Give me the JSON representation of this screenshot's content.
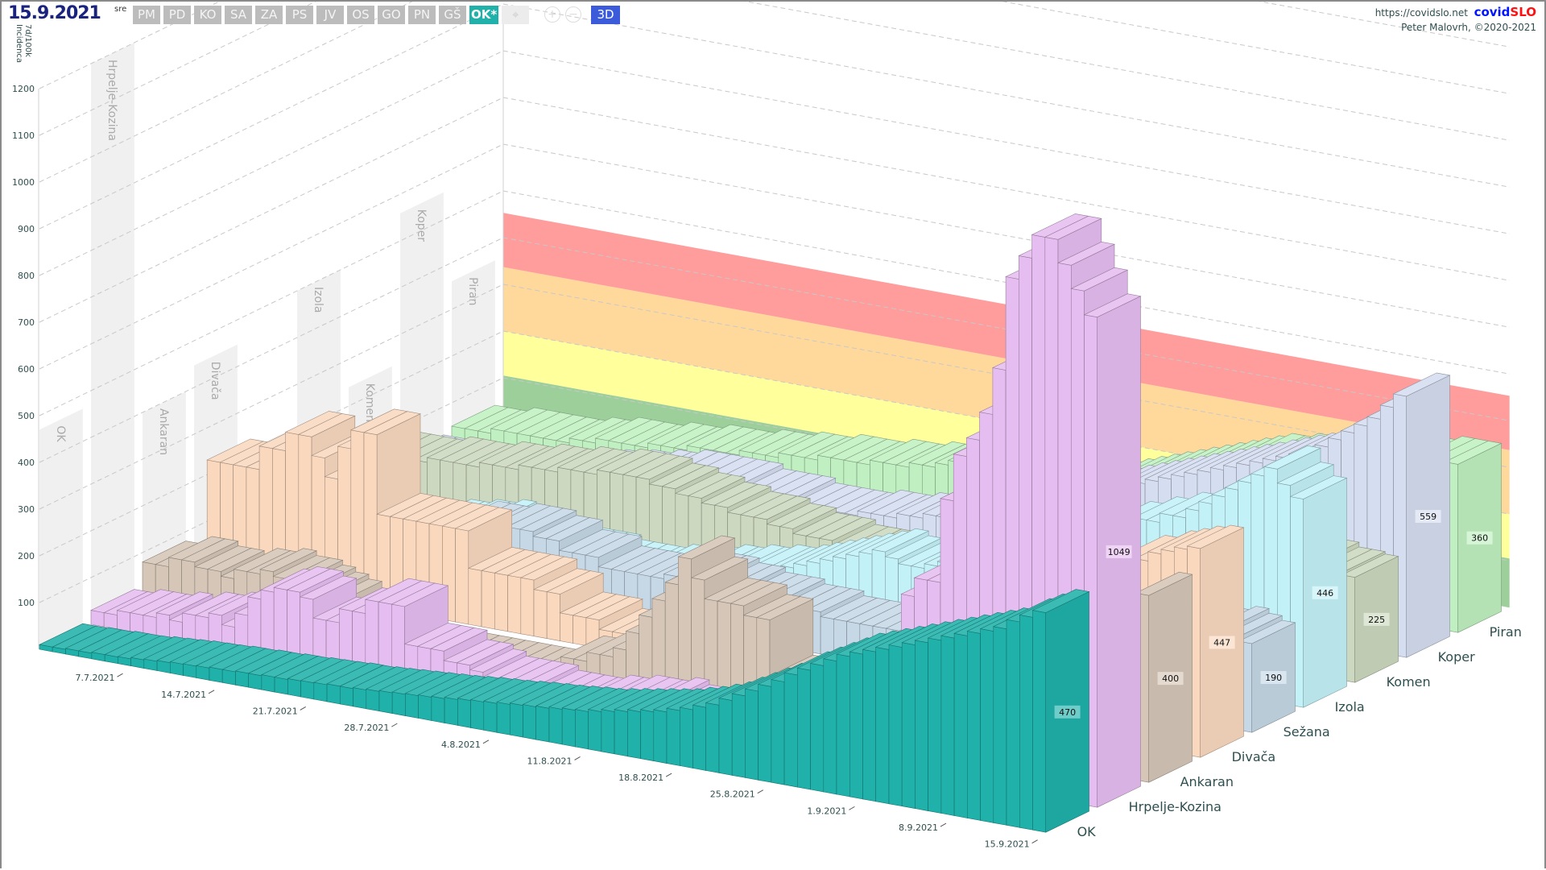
{
  "header": {
    "date": "15.9.2021",
    "weekday": "sre",
    "buttons": [
      "PM",
      "PD",
      "KO",
      "SA",
      "ZA",
      "PS",
      "JV",
      "OS",
      "GO",
      "PN",
      "GŠ",
      "OK*"
    ],
    "icons": [
      "location-icon",
      "zoom-in-icon",
      "zoom-out-icon"
    ],
    "view_button": "3D",
    "url": "https://covidslo.net",
    "brand_a": "covid",
    "brand_b": "SLO",
    "credit": "Peter Malovrh, ©2020-2021"
  },
  "colors": {
    "accent": "#20b2aa",
    "view_button": "#3b5bdb",
    "brand_blue": "#0015ff",
    "brand_red": "#ff1010",
    "title": "#1a237e"
  },
  "chart_data": {
    "type": "bar",
    "projection": "3d",
    "ylabel": [
      "7d/100k",
      "Incidenca"
    ],
    "y_ticks": [
      100,
      200,
      300,
      400,
      500,
      600,
      700,
      800,
      900,
      1000,
      1100,
      1200
    ],
    "ylim": [
      0,
      1250
    ],
    "x_range": [
      "1.7.2021",
      "15.9.2021"
    ],
    "x_tick_labels": [
      "7.7.2021",
      "14.7.2021",
      "21.7.2021",
      "28.7.2021",
      "4.8.2021",
      "11.8.2021",
      "18.8.2021",
      "25.8.2021",
      "1.9.2021",
      "8.9.2021",
      "15.9.2021"
    ],
    "grid": true,
    "bands": [
      {
        "from": 0,
        "to": 105,
        "color": "#9dcf9b"
      },
      {
        "from": 105,
        "to": 200,
        "color": "#ffff9c"
      },
      {
        "from": 200,
        "to": 337,
        "color": "#ffd99c"
      },
      {
        "from": 337,
        "to": 453,
        "color": "#ff9c9c"
      }
    ],
    "series": [
      {
        "name": "OK",
        "color": "#20b2aa",
        "last_label": "470",
        "values": [
          10,
          10,
          12,
          12,
          14,
          14,
          15,
          18,
          20,
          22,
          24,
          25,
          26,
          28,
          28,
          30,
          30,
          32,
          32,
          34,
          35,
          36,
          38,
          38,
          40,
          42,
          44,
          46,
          48,
          50,
          52,
          55,
          58,
          60,
          62,
          65,
          68,
          70,
          72,
          75,
          78,
          80,
          85,
          90,
          95,
          100,
          105,
          110,
          118,
          125,
          135,
          145,
          160,
          175,
          190,
          205,
          220,
          240,
          255,
          270,
          285,
          300,
          310,
          320,
          330,
          340,
          350,
          360,
          370,
          380,
          390,
          400,
          410,
          420,
          440,
          455,
          470
        ]
      },
      {
        "name": "Hrpelje-Kozina",
        "color": "#e6bdf0",
        "last_label": "1049",
        "values": [
          30,
          30,
          40,
          40,
          40,
          50,
          40,
          60,
          60,
          70,
          50,
          80,
          120,
          140,
          150,
          150,
          140,
          100,
          100,
          130,
          130,
          160,
          160,
          160,
          80,
          80,
          80,
          60,
          60,
          50,
          40,
          40,
          40,
          40,
          30,
          30,
          30,
          30,
          40,
          40,
          50,
          50,
          50,
          60,
          50,
          40,
          40,
          40,
          40,
          40,
          40,
          60,
          80,
          80,
          90,
          100,
          120,
          130,
          140,
          160,
          200,
          220,
          380,
          420,
          420,
          600,
          700,
          740,
          800,
          900,
          1100,
          1150,
          1200,
          1200,
          1150,
          1100,
          1049
        ]
      },
      {
        "name": "Ankaran",
        "color": "#d5c6b7",
        "last_label": "400",
        "values": [
          80,
          80,
          100,
          100,
          90,
          90,
          80,
          100,
          100,
          110,
          100,
          100,
          90,
          80,
          70,
          40,
          20,
          10,
          10,
          10,
          5,
          0,
          0,
          0,
          0,
          0,
          0,
          0,
          0,
          0,
          0,
          20,
          40,
          40,
          60,
          60,
          80,
          120,
          160,
          200,
          240,
          300,
          260,
          220,
          220,
          220,
          200,
          200,
          80,
          80,
          80,
          100,
          100,
          100,
          120,
          100,
          60,
          60,
          60,
          120,
          200,
          180,
          200,
          160,
          160,
          150,
          220,
          220,
          240,
          200,
          200,
          160,
          160,
          200,
          220,
          250,
          400
        ]
      },
      {
        "name": "Divača",
        "color": "#f9d8be",
        "last_label": "447",
        "values": [
          0,
          250,
          250,
          250,
          250,
          300,
          300,
          340,
          340,
          300,
          260,
          330,
          370,
          370,
          200,
          200,
          200,
          200,
          200,
          200,
          200,
          120,
          120,
          120,
          120,
          120,
          100,
          100,
          60,
          60,
          60,
          40,
          40,
          30,
          30,
          20,
          20,
          10,
          10,
          0,
          0,
          0,
          0,
          0,
          0,
          0,
          0,
          0,
          0,
          0,
          0,
          0,
          0,
          0,
          0,
          0,
          20,
          40,
          60,
          80,
          100,
          120,
          150,
          180,
          200,
          250,
          300,
          300,
          350,
          350,
          380,
          400,
          400,
          420,
          430,
          440,
          447
        ]
      },
      {
        "name": "Sežana",
        "color": "#c6d8e6",
        "last_label": "190",
        "values": [
          50,
          50,
          50,
          50,
          50,
          50,
          60,
          60,
          60,
          60,
          80,
          80,
          100,
          100,
          120,
          120,
          140,
          140,
          140,
          150,
          150,
          150,
          140,
          140,
          120,
          120,
          120,
          100,
          100,
          100,
          100,
          100,
          110,
          110,
          120,
          120,
          110,
          110,
          100,
          100,
          100,
          90,
          90,
          90,
          80,
          80,
          80,
          80,
          80,
          80,
          70,
          70,
          70,
          70,
          60,
          60,
          60,
          60,
          70,
          80,
          100,
          120,
          130,
          140,
          150,
          160,
          160,
          170,
          170,
          180,
          180,
          190,
          200,
          200,
          210,
          200,
          190
        ]
      },
      {
        "name": "Izola",
        "color": "#c3f1f8",
        "last_label": "446",
        "values": [
          40,
          40,
          40,
          40,
          40,
          40,
          40,
          40,
          50,
          50,
          60,
          60,
          70,
          70,
          80,
          70,
          70,
          60,
          60,
          60,
          50,
          50,
          50,
          40,
          40,
          40,
          40,
          50,
          50,
          60,
          60,
          70,
          70,
          80,
          80,
          90,
          90,
          100,
          110,
          120,
          130,
          140,
          150,
          160,
          170,
          160,
          150,
          150,
          160,
          170,
          180,
          190,
          200,
          200,
          210,
          220,
          230,
          240,
          260,
          280,
          300,
          300,
          320,
          320,
          340,
          340,
          360,
          360,
          380,
          400,
          420,
          440,
          460,
          480,
          500,
          470,
          446
        ]
      },
      {
        "name": "Komen",
        "color": "#ccd8bf",
        "last_label": "225",
        "values": [
          110,
          110,
          110,
          110,
          110,
          110,
          120,
          120,
          120,
          120,
          130,
          130,
          130,
          140,
          140,
          140,
          150,
          150,
          150,
          160,
          160,
          160,
          160,
          150,
          150,
          140,
          140,
          130,
          130,
          120,
          120,
          120,
          110,
          110,
          100,
          100,
          100,
          90,
          90,
          90,
          80,
          80,
          80,
          70,
          70,
          60,
          60,
          60,
          60,
          60,
          60,
          60,
          70,
          70,
          80,
          80,
          90,
          100,
          120,
          140,
          160,
          180,
          190,
          200,
          200,
          200,
          210,
          210,
          220,
          220,
          230,
          230,
          240,
          240,
          230,
          230,
          225
        ]
      },
      {
        "name": "Koper",
        "color": "#d5ddf0",
        "last_label": "559",
        "values": [
          40,
          40,
          40,
          40,
          40,
          40,
          40,
          40,
          50,
          50,
          60,
          60,
          70,
          70,
          80,
          80,
          90,
          90,
          100,
          100,
          110,
          110,
          110,
          110,
          110,
          110,
          100,
          100,
          100,
          100,
          90,
          90,
          90,
          90,
          90,
          100,
          100,
          100,
          110,
          110,
          120,
          120,
          130,
          140,
          150,
          160,
          170,
          180,
          190,
          200,
          210,
          220,
          230,
          240,
          250,
          260,
          270,
          280,
          290,
          300,
          310,
          320,
          330,
          340,
          350,
          360,
          370,
          380,
          390,
          400,
          420,
          440,
          460,
          480,
          500,
          530,
          559
        ]
      },
      {
        "name": "Piran",
        "color": "#c0f0c1",
        "last_label": "360",
        "values": [
          50,
          50,
          50,
          60,
          60,
          60,
          60,
          60,
          60,
          70,
          70,
          80,
          80,
          80,
          80,
          90,
          90,
          90,
          100,
          100,
          100,
          100,
          110,
          110,
          110,
          120,
          120,
          120,
          130,
          130,
          130,
          130,
          140,
          140,
          140,
          150,
          150,
          160,
          170,
          180,
          190,
          200,
          210,
          210,
          200,
          200,
          190,
          190,
          180,
          180,
          190,
          200,
          210,
          220,
          230,
          240,
          250,
          260,
          270,
          280,
          290,
          300,
          300,
          310,
          310,
          320,
          320,
          330,
          330,
          340,
          340,
          350,
          350,
          350,
          360,
          360,
          360
        ]
      }
    ]
  }
}
